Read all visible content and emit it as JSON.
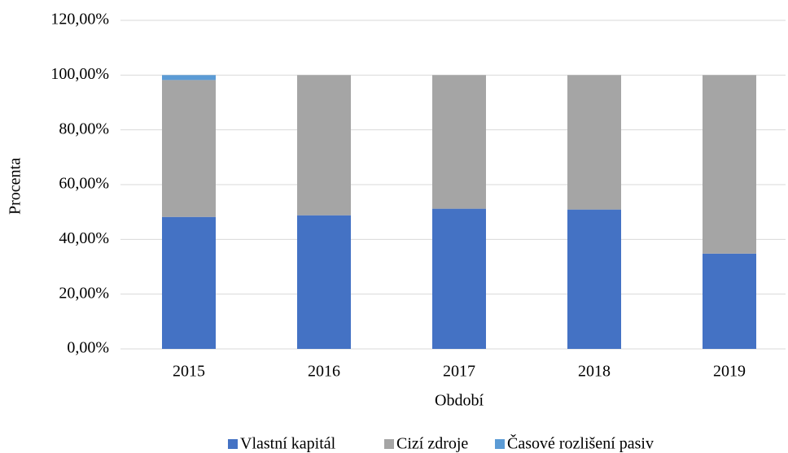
{
  "chart_data": {
    "type": "stacked_bar",
    "x_label": "Období",
    "y_label": "Procenta",
    "categories": [
      "2015",
      "2016",
      "2017",
      "2018",
      "2019"
    ],
    "series": [
      {
        "name": "Vlastní kapitál",
        "color": "#4472c4",
        "values": [
          48.2,
          48.8,
          51.2,
          50.9,
          34.8
        ]
      },
      {
        "name": "Cizí zdroje",
        "color": "#a5a5a5",
        "values": [
          50.0,
          51.2,
          48.8,
          49.1,
          65.2
        ]
      },
      {
        "name": "Časové rozlišení pasiv",
        "color": "#5b9bd5",
        "values": [
          1.8,
          0,
          0,
          0,
          0
        ]
      }
    ],
    "ylim": [
      0,
      120
    ],
    "yticks": [
      {
        "value": 0,
        "label": "0,00%"
      },
      {
        "value": 20,
        "label": "20,00%"
      },
      {
        "value": 40,
        "label": "40,00%"
      },
      {
        "value": 60,
        "label": "60,00%"
      },
      {
        "value": 80,
        "label": "80,00%"
      },
      {
        "value": 100,
        "label": "100,00%"
      },
      {
        "value": 120,
        "label": "120,00%"
      }
    ],
    "grid": true,
    "legend": "bottom"
  }
}
